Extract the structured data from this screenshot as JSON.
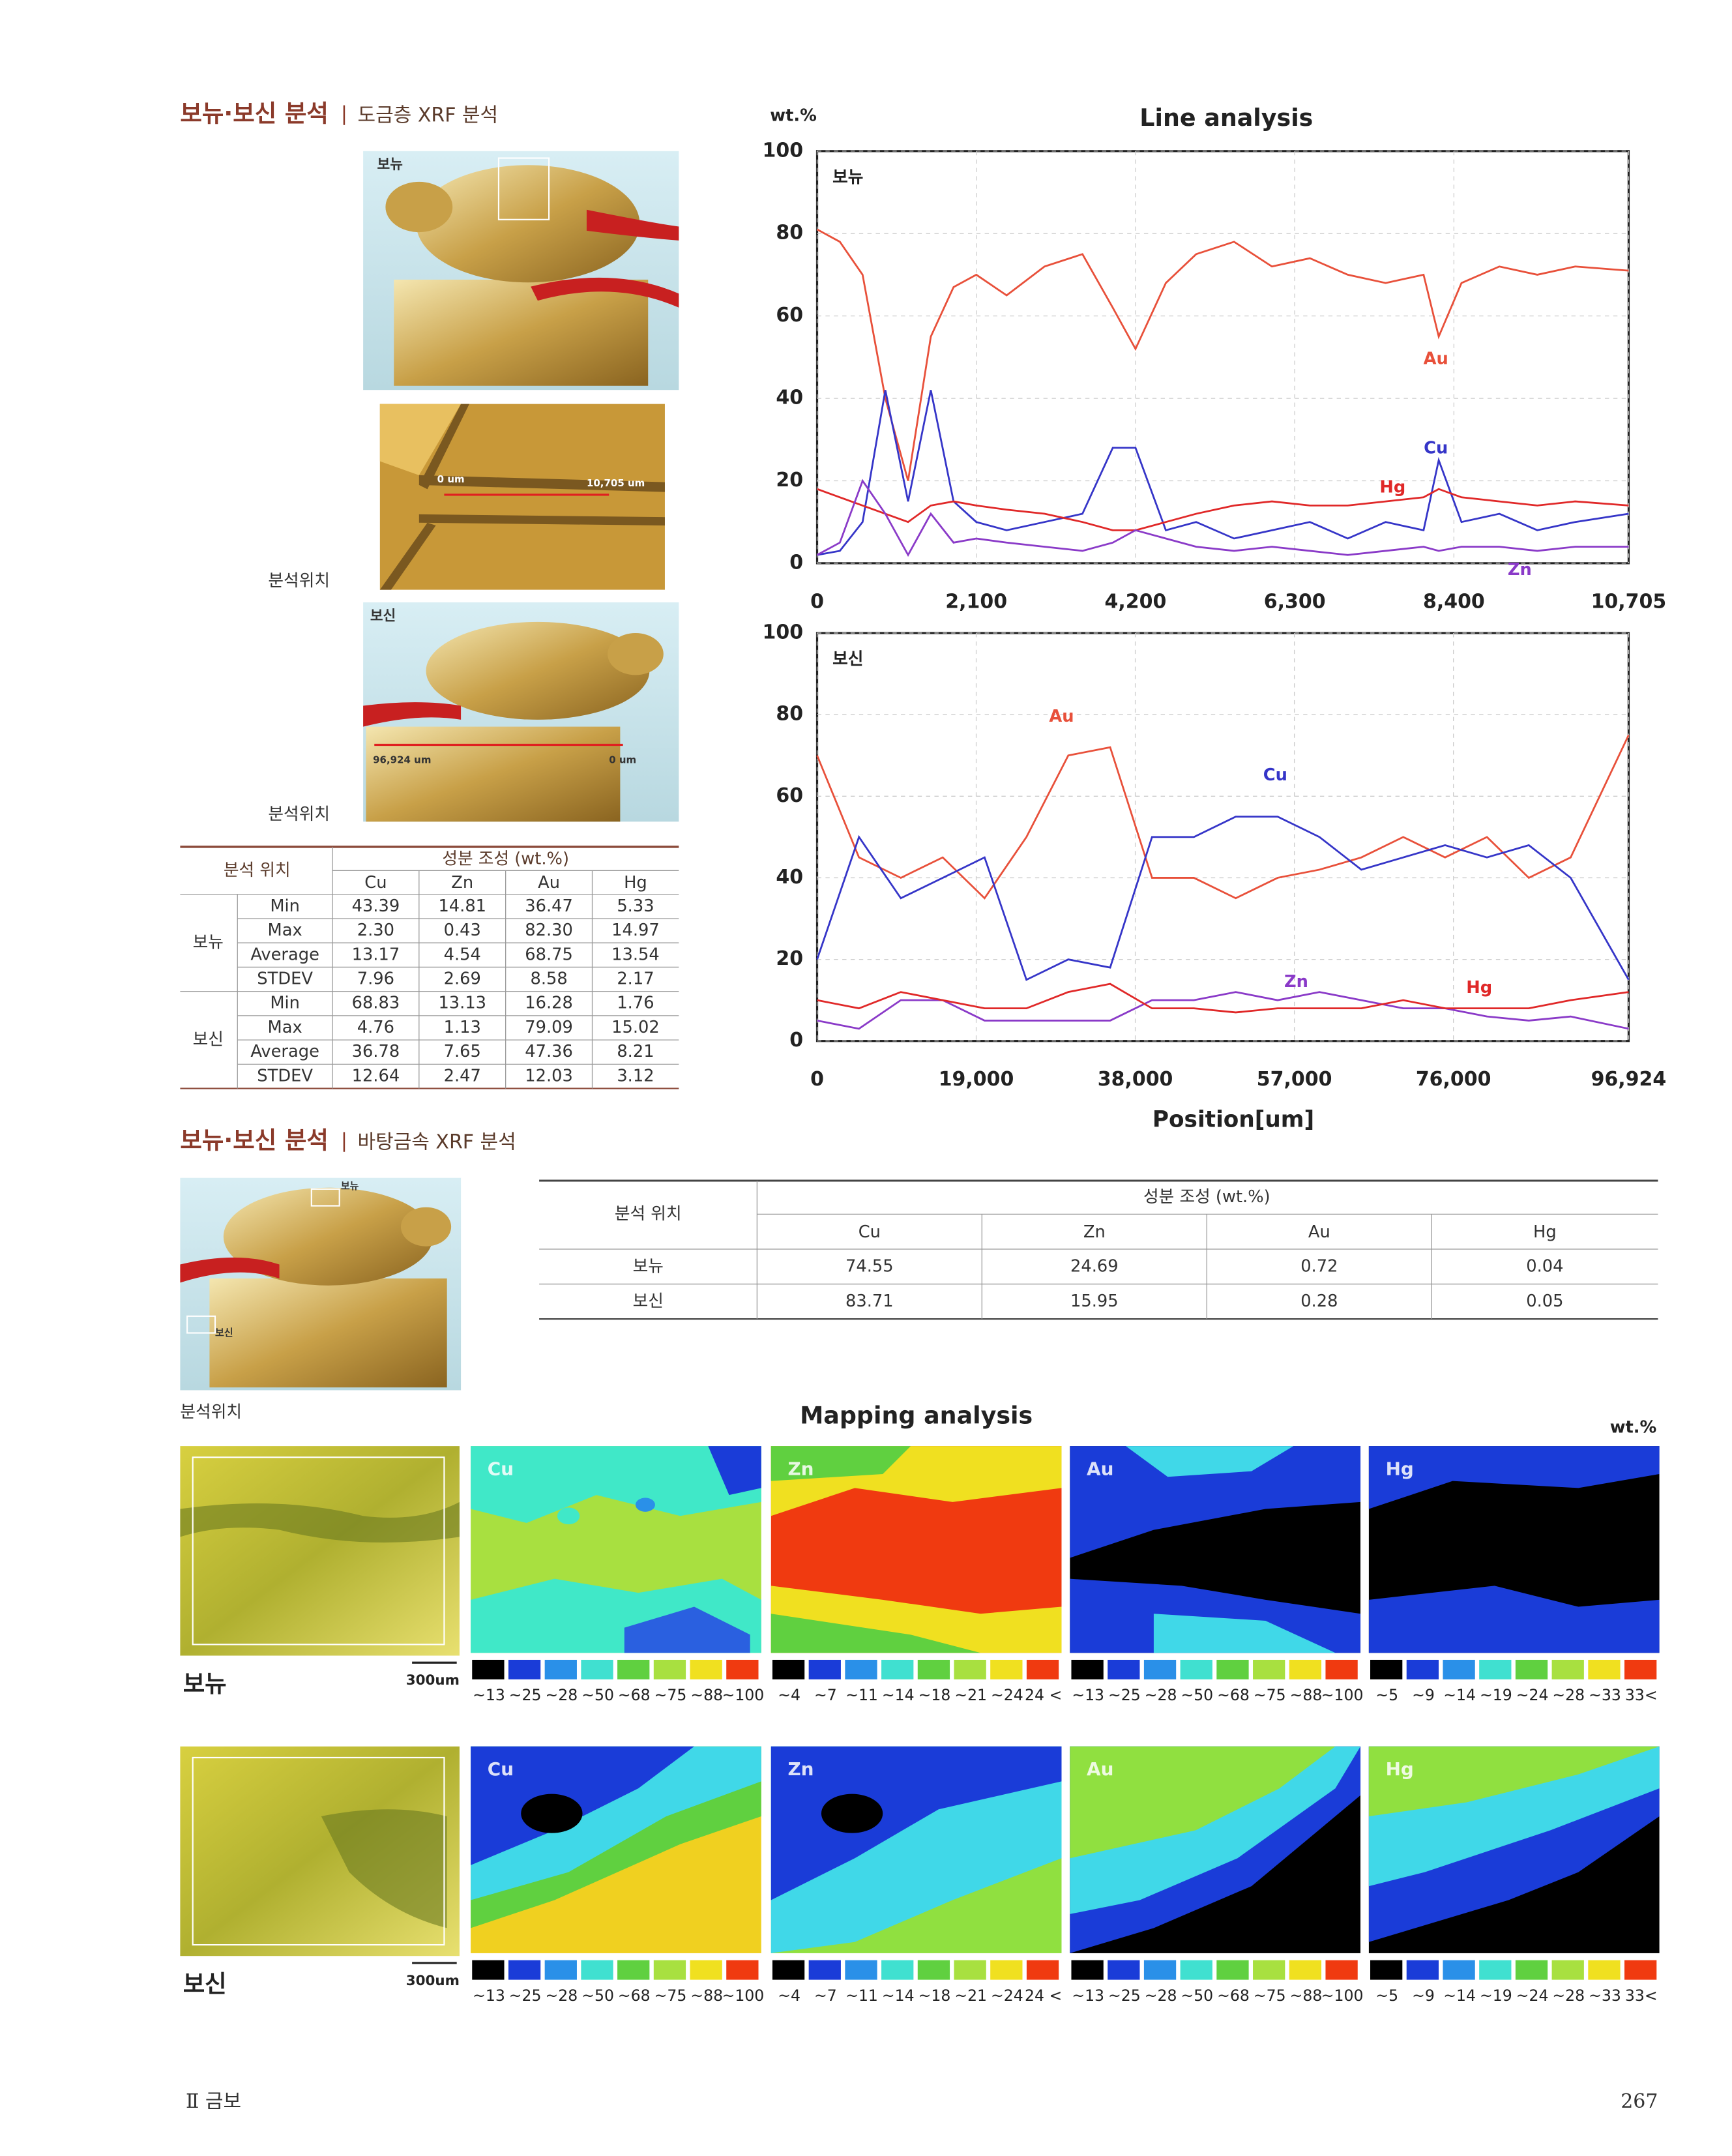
{
  "section1": {
    "title": "보뉴·보신 분석",
    "subtitle": "도금층 XRF 분석"
  },
  "photos": {
    "top_label": "보뉴",
    "scan_start": "0 um",
    "scan_end": "10,705 um",
    "bottom_label": "보신",
    "scan2_start": "96,924 um",
    "scan2_end": "0 um",
    "caption1": "분석위치",
    "caption2": "분석위치"
  },
  "table1": {
    "header_location": "분석 위치",
    "header_comp": "성분 조성 (wt.%)",
    "columns": [
      "Cu",
      "Zn",
      "Au",
      "Hg"
    ],
    "groups": [
      {
        "name": "보뉴",
        "rows": [
          {
            "stat": "Min",
            "values": [
              "43.39",
              "14.81",
              "36.47",
              "5.33"
            ]
          },
          {
            "stat": "Max",
            "values": [
              "2.30",
              "0.43",
              "82.30",
              "14.97"
            ]
          },
          {
            "stat": "Average",
            "values": [
              "13.17",
              "4.54",
              "68.75",
              "13.54"
            ]
          },
          {
            "stat": "STDEV",
            "values": [
              "7.96",
              "2.69",
              "8.58",
              "2.17"
            ]
          }
        ]
      },
      {
        "name": "보신",
        "rows": [
          {
            "stat": "Min",
            "values": [
              "68.83",
              "13.13",
              "16.28",
              "1.76"
            ]
          },
          {
            "stat": "Max",
            "values": [
              "4.76",
              "1.13",
              "79.09",
              "15.02"
            ]
          },
          {
            "stat": "Average",
            "values": [
              "36.78",
              "7.65",
              "47.36",
              "8.21"
            ]
          },
          {
            "stat": "STDEV",
            "values": [
              "12.64",
              "2.47",
              "12.03",
              "3.12"
            ]
          }
        ]
      }
    ]
  },
  "chart_data": [
    {
      "type": "line",
      "title": "Line analysis",
      "y_unit": "wt.%",
      "panel": "보뉴",
      "grid": true,
      "xlim": [
        0,
        10705
      ],
      "xticks": [
        0,
        {
          "value": 2100,
          "label": "2,100"
        },
        {
          "value": 4200,
          "label": "4,200"
        },
        {
          "value": 6300,
          "label": "6,300"
        },
        {
          "value": 8400,
          "label": "8,400"
        },
        {
          "value": 10705,
          "label": "10,705"
        }
      ],
      "ylim": [
        0,
        100
      ],
      "yticks": [
        0,
        20,
        40,
        60,
        80,
        100
      ],
      "x": [
        0,
        300,
        600,
        900,
        1200,
        1500,
        1800,
        2100,
        2500,
        3000,
        3500,
        3900,
        4200,
        4600,
        5000,
        5500,
        6000,
        6500,
        7000,
        7500,
        8000,
        8200,
        8500,
        9000,
        9500,
        10000,
        10705
      ],
      "series": [
        {
          "name": "Au",
          "color": "#e8503a",
          "values": [
            81,
            78,
            70,
            40,
            20,
            55,
            67,
            70,
            65,
            72,
            75,
            62,
            52,
            68,
            75,
            78,
            72,
            74,
            70,
            68,
            70,
            55,
            68,
            72,
            70,
            72,
            71
          ]
        },
        {
          "name": "Cu",
          "color": "#3535c8",
          "values": [
            2,
            3,
            10,
            42,
            15,
            42,
            15,
            10,
            8,
            10,
            12,
            28,
            28,
            8,
            10,
            6,
            8,
            10,
            6,
            10,
            8,
            25,
            10,
            12,
            8,
            10,
            12
          ]
        },
        {
          "name": "Hg",
          "color": "#e02828",
          "values": [
            18,
            16,
            14,
            12,
            10,
            14,
            15,
            14,
            13,
            12,
            10,
            8,
            8,
            10,
            12,
            14,
            15,
            14,
            14,
            15,
            16,
            18,
            16,
            15,
            14,
            15,
            14
          ]
        },
        {
          "name": "Zn",
          "color": "#8a3ac8",
          "values": [
            2,
            5,
            20,
            12,
            2,
            12,
            5,
            6,
            5,
            4,
            3,
            5,
            8,
            6,
            4,
            3,
            4,
            3,
            2,
            3,
            4,
            3,
            4,
            4,
            3,
            4,
            4
          ]
        }
      ]
    },
    {
      "type": "line",
      "panel": "보신",
      "x_label": "Position[um]",
      "grid": true,
      "xlim": [
        0,
        96924
      ],
      "xticks": [
        0,
        {
          "value": 19000,
          "label": "19,000"
        },
        {
          "value": 38000,
          "label": "38,000"
        },
        {
          "value": 57000,
          "label": "57,000"
        },
        {
          "value": 76000,
          "label": "76,000"
        },
        {
          "value": 96924,
          "label": "96,924"
        }
      ],
      "ylim": [
        0,
        100
      ],
      "yticks": [
        0,
        20,
        40,
        60,
        80,
        100
      ],
      "x": [
        0,
        5000,
        10000,
        15000,
        20000,
        25000,
        30000,
        35000,
        40000,
        45000,
        50000,
        55000,
        60000,
        65000,
        70000,
        75000,
        80000,
        85000,
        90000,
        96924
      ],
      "series": [
        {
          "name": "Au",
          "color": "#e8503a",
          "values": [
            70,
            45,
            40,
            45,
            35,
            50,
            70,
            72,
            40,
            40,
            35,
            40,
            42,
            45,
            50,
            45,
            50,
            40,
            45,
            75
          ]
        },
        {
          "name": "Cu",
          "color": "#3535c8",
          "values": [
            20,
            50,
            35,
            40,
            45,
            15,
            20,
            18,
            50,
            50,
            55,
            55,
            50,
            42,
            45,
            48,
            45,
            48,
            40,
            15
          ]
        },
        {
          "name": "Zn",
          "color": "#8a3ac8",
          "values": [
            5,
            3,
            10,
            10,
            5,
            5,
            5,
            5,
            10,
            10,
            12,
            10,
            12,
            10,
            8,
            8,
            6,
            5,
            6,
            3
          ]
        },
        {
          "name": "Hg",
          "color": "#e02828",
          "values": [
            10,
            8,
            12,
            10,
            8,
            8,
            12,
            14,
            8,
            8,
            7,
            8,
            8,
            8,
            10,
            8,
            8,
            8,
            10,
            12
          ]
        }
      ]
    }
  ],
  "section2": {
    "title": "보뉴·보신 분석",
    "subtitle": "바탕금속 XRF 분석",
    "photo_labels": [
      "보뉴",
      "보신"
    ],
    "caption": "분석위치"
  },
  "table2": {
    "header_location": "분석 위치",
    "header_comp": "성분 조성 (wt.%)",
    "columns": [
      "Cu",
      "Zn",
      "Au",
      "Hg"
    ],
    "rows": [
      {
        "name": "보뉴",
        "values": [
          "74.55",
          "24.69",
          "0.72",
          "0.04"
        ]
      },
      {
        "name": "보신",
        "values": [
          "83.71",
          "15.95",
          "0.28",
          "0.05"
        ]
      }
    ]
  },
  "mapping": {
    "title": "Mapping analysis",
    "unit": "wt.%",
    "rows": [
      {
        "label": "보뉴",
        "scale": "300um",
        "maps": [
          {
            "element": "Cu",
            "legend": [
              "~13",
              "~25",
              "~28",
              "~50",
              "~68",
              "~75",
              "~88",
              "~100"
            ]
          },
          {
            "element": "Zn",
            "legend": [
              "~4",
              "~7",
              "~11",
              "~14",
              "~18",
              "~21",
              "~24",
              "24 <"
            ]
          },
          {
            "element": "Au",
            "legend": [
              "~13",
              "~25",
              "~28",
              "~50",
              "~68",
              "~75",
              "~88",
              "~100"
            ]
          },
          {
            "element": "Hg",
            "legend": [
              "~5",
              "~9",
              "~14",
              "~19",
              "~24",
              "~28",
              "~33",
              "33<"
            ]
          }
        ]
      },
      {
        "label": "보신",
        "scale": "300um",
        "maps": [
          {
            "element": "Cu",
            "legend": [
              "~13",
              "~25",
              "~28",
              "~50",
              "~68",
              "~75",
              "~88",
              "~100"
            ]
          },
          {
            "element": "Zn",
            "legend": [
              "~4",
              "~7",
              "~11",
              "~14",
              "~18",
              "~21",
              "~24",
              "24 <"
            ]
          },
          {
            "element": "Au",
            "legend": [
              "~13",
              "~25",
              "~28",
              "~50",
              "~68",
              "~75",
              "~88",
              "~100"
            ]
          },
          {
            "element": "Hg",
            "legend": [
              "~5",
              "~9",
              "~14",
              "~19",
              "~24",
              "~28",
              "~33",
              "33<"
            ]
          }
        ]
      }
    ]
  },
  "footer": {
    "section": "Ⅱ 금보",
    "page": "267"
  }
}
